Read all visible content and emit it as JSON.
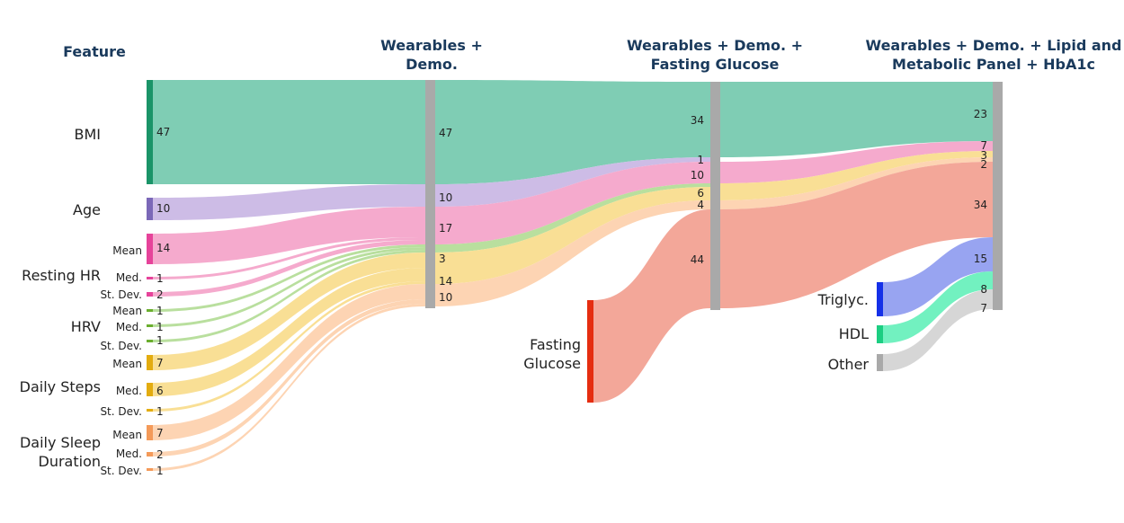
{
  "colors": {
    "bmi": "#74c9ae",
    "age": "#c9b6e4",
    "rhr": "#f4a3c9",
    "hrv": "#b3dc96",
    "steps": "#f8dc8c",
    "sleep": "#fdd0ad",
    "glucose": "#f2a090",
    "trig": "#8f9cf0",
    "hdl": "#66f0bb",
    "other": "#d3d3d3",
    "col_bar": "#a9a9a9",
    "bar_bmi": "#1a9468",
    "bar_age": "#7b68b8",
    "bar_rhr": "#e6439a",
    "bar_hrv": "#6aae2e",
    "bar_steps": "#e3ac10",
    "bar_sleep": "#f49a59",
    "bar_glucose": "#e52d10",
    "bar_trig": "#1530e8",
    "bar_hdl": "#1cce82",
    "bar_other": "#a9a9a9"
  },
  "headers": {
    "feature": "Feature",
    "col1_line1": "Wearables +",
    "col1_line2": "Demo.",
    "col2_line1": "Wearables + Demo. +",
    "col2_line2": "Fasting Glucose",
    "col3_line1": "Wearables + Demo. + Lipid and",
    "col3_line2": "Metabolic Panel + HbA1c"
  },
  "labels": {
    "bmi": "BMI",
    "age": "Age",
    "resting_hr": "Resting HR",
    "hrv": "HRV",
    "daily_steps": "Daily Steps",
    "daily_sleep_line1": "Daily Sleep",
    "daily_sleep_line2": "Duration",
    "mean": "Mean",
    "med": "Med.",
    "stdev": "St. Dev.",
    "fasting_line1": "Fasting",
    "fasting_line2": "Glucose",
    "triglyc": "Triglyc.",
    "hdl": "HDL",
    "other": "Other"
  },
  "features": {
    "bmi": "47",
    "age": "10",
    "rhr_mean": "14",
    "rhr_med": "1",
    "rhr_stdev": "2",
    "hrv_mean": "1",
    "hrv_med": "1",
    "hrv_stdev": "1",
    "steps_mean": "7",
    "steps_med": "6",
    "steps_stdev": "1",
    "sleep_mean": "7",
    "sleep_med": "2",
    "sleep_stdev": "1"
  },
  "col1": {
    "bmi": "47",
    "age": "10",
    "rhr": "17",
    "hrv": "3",
    "steps": "14",
    "sleep": "10"
  },
  "col2": {
    "bmi": "34",
    "age": "1",
    "rhr": "10",
    "steps": "6",
    "sleep": "4",
    "glucose": "44"
  },
  "col3": {
    "bmi": "23",
    "rhr": "7",
    "steps": "3",
    "sleep": "2",
    "glucose": "34",
    "trig": "15",
    "hdl": "8",
    "other": "7"
  }
}
